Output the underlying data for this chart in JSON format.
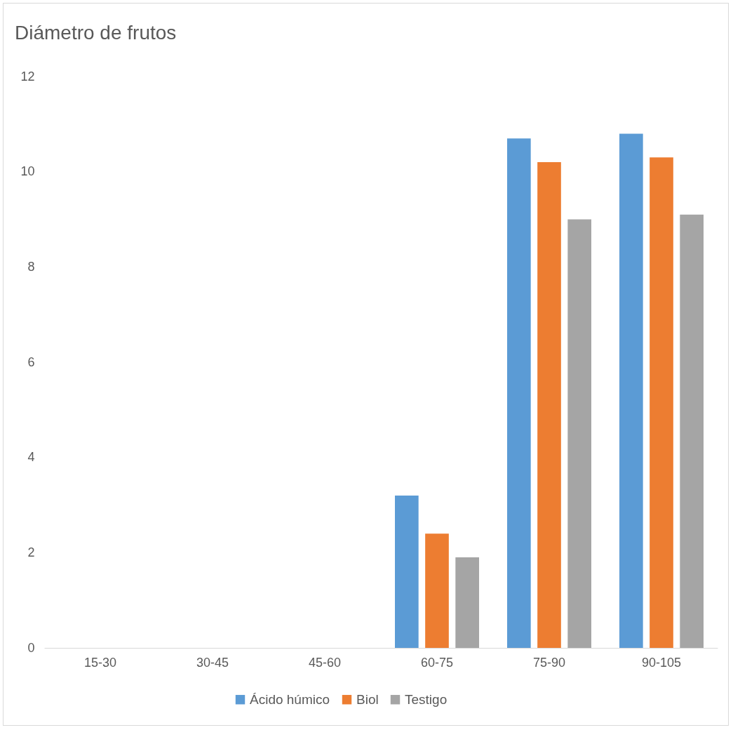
{
  "chart_data": {
    "type": "bar",
    "title": "Diámetro de frutos",
    "categories": [
      "15-30",
      "30-45",
      "45-60",
      "60-75",
      "75-90",
      "90-105"
    ],
    "series": [
      {
        "name": "Ácido húmico",
        "color": "#5b9bd5",
        "values": [
          0,
          0,
          0,
          3.2,
          10.7,
          10.8
        ]
      },
      {
        "name": "Biol",
        "color": "#ed7d31",
        "values": [
          0,
          0,
          0,
          2.4,
          10.2,
          10.3
        ]
      },
      {
        "name": "Testigo",
        "color": "#a5a5a5",
        "values": [
          0,
          0,
          0,
          1.9,
          9.0,
          9.1
        ]
      }
    ],
    "ylim": [
      0,
      12
    ],
    "yticks": [
      0,
      2,
      4,
      6,
      8,
      10,
      12
    ],
    "grid": false,
    "legend": "bottom"
  }
}
